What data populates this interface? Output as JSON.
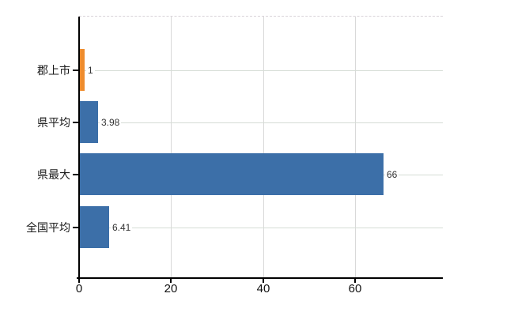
{
  "chart_data": {
    "type": "bar",
    "orientation": "horizontal",
    "title": "",
    "xlabel": "",
    "ylabel": "",
    "categories": [
      "郡上市",
      "県平均",
      "県最大",
      "全国平均"
    ],
    "values": [
      1,
      3.98,
      66,
      6.41
    ],
    "value_labels": [
      "1",
      "3.98",
      "66",
      "6.41"
    ],
    "bar_colors": [
      "#ee8c2e",
      "#3c6fa8",
      "#3c6fa8",
      "#3c6fa8"
    ],
    "x_ticks": [
      0,
      20,
      40,
      60
    ],
    "x_tick_labels": [
      "0",
      "20",
      "40",
      "60"
    ],
    "xlim": [
      0,
      79
    ],
    "grid": true,
    "legend_position": "none",
    "colors": {
      "highlight_bar": "#ee8c2e",
      "default_bar": "#3c6fa8",
      "axis": "#000000",
      "vertical_gridline": "#d9d9d9",
      "horizontal_gridline": "#d5dcd5",
      "plot_top_border": "#d8d2d8",
      "background": "#ffffff",
      "label_text": "#1a1a1a",
      "value_text": "#333333"
    }
  }
}
